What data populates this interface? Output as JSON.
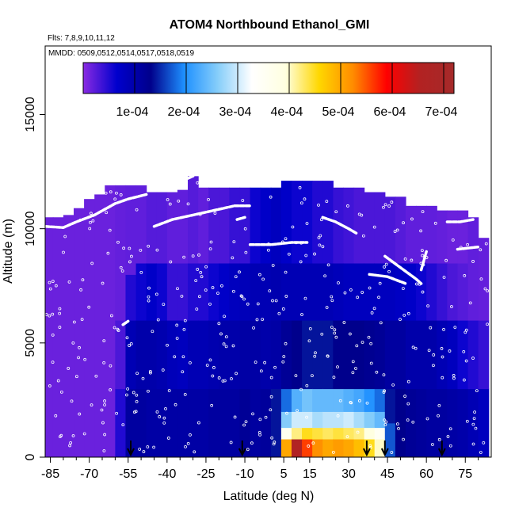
{
  "chart_data": {
    "type": "heatmap",
    "title": "ATOM4 Northbound Ethanol_GMI",
    "flights_label": "Flts: 7,8,9,10,11,12",
    "dates_label": "MMDD: 0509,0512,0514,0517,0518,0519",
    "xlabel": "Latitude (deg N)",
    "ylabel": "Altitude (m)",
    "xlim": [
      -87,
      85
    ],
    "ylim": [
      0,
      18000
    ],
    "x_ticks": [
      -85,
      -70,
      -55,
      -40,
      -25,
      -10,
      5,
      15,
      30,
      45,
      60,
      75
    ],
    "x_minor_ticks": [
      -80,
      -75,
      -65,
      -60,
      -50,
      -45,
      -35,
      -30,
      -20,
      -15,
      -5,
      0,
      10,
      20,
      25,
      35,
      40,
      50,
      55,
      65,
      70,
      80
    ],
    "y_ticks": [
      0,
      5000,
      10000,
      15000
    ],
    "colorbar": {
      "min": 0,
      "max": 0.00072,
      "tick_values": [
        0.0001,
        0.0002,
        0.0003,
        0.0004,
        0.0005,
        0.0006,
        0.0007
      ],
      "tick_labels": [
        "1e-04",
        "2e-04",
        "3e-04",
        "4e-04",
        "5e-04",
        "6e-04",
        "7e-04"
      ],
      "colors": [
        "#8a2be2",
        "#0000cd",
        "#00008b",
        "#1e90ff",
        "#87cefa",
        "#ffffff",
        "#ffffe0",
        "#ffd700",
        "#ff8c00",
        "#ff0000",
        "#b22222",
        "#a52a2a"
      ]
    },
    "colorbar_boundaries": [
      0.0001,
      0.0002,
      0.0003,
      0.0004,
      0.0005,
      0.0006,
      0.0007
    ],
    "profile_arrows_latitude": [
      -54,
      -11,
      37,
      44,
      66
    ],
    "flight_tracks": [
      [
        [
          -87,
          10100
        ],
        [
          -80,
          10050
        ],
        [
          -75,
          10300
        ],
        [
          -68,
          10600
        ],
        [
          -60,
          11100
        ],
        [
          -55,
          11300
        ],
        [
          -48,
          11500
        ]
      ],
      [
        [
          -45,
          10100
        ],
        [
          -38,
          10400
        ],
        [
          -30,
          10600
        ],
        [
          -22,
          10800
        ],
        [
          -14,
          11000
        ],
        [
          -8,
          11000
        ]
      ],
      [
        [
          -13,
          10400
        ],
        [
          -10,
          10500
        ]
      ],
      [
        [
          -8,
          9300
        ],
        [
          0,
          9300
        ],
        [
          8,
          9400
        ],
        [
          14,
          9400
        ]
      ],
      [
        [
          20,
          10500
        ],
        [
          25,
          10300
        ],
        [
          30,
          10000
        ],
        [
          33,
          9800
        ]
      ],
      [
        [
          44,
          8800
        ],
        [
          50,
          8300
        ],
        [
          56,
          7800
        ],
        [
          58,
          7600
        ]
      ],
      [
        [
          38,
          8000
        ],
        [
          45,
          7900
        ],
        [
          52,
          7600
        ]
      ],
      [
        [
          58,
          8200
        ],
        [
          60,
          9000
        ]
      ],
      [
        [
          68,
          10300
        ],
        [
          73,
          10300
        ],
        [
          78,
          10400
        ]
      ],
      [
        [
          72,
          9100
        ],
        [
          80,
          9200
        ]
      ],
      [
        [
          -57,
          5800
        ],
        [
          -55,
          5950
        ]
      ],
      [
        [
          -32,
          12200
        ],
        [
          -30,
          12300
        ]
      ]
    ],
    "columns": [
      {
        "lat": -86,
        "top": 10500,
        "levels": [
          [
            0,
            1.5e-05
          ]
        ]
      },
      {
        "lat": -82,
        "top": 10500,
        "levels": [
          [
            0,
            1.5e-05
          ]
        ]
      },
      {
        "lat": -78,
        "top": 10600,
        "levels": [
          [
            0,
            1.5e-05
          ]
        ]
      },
      {
        "lat": -74,
        "top": 10900,
        "levels": [
          [
            0,
            1.5e-05
          ]
        ]
      },
      {
        "lat": -70,
        "top": 11300,
        "levels": [
          [
            0,
            1.5e-05
          ]
        ]
      },
      {
        "lat": -66,
        "top": 11500,
        "levels": [
          [
            0,
            1.5e-05
          ]
        ]
      },
      {
        "lat": -62,
        "top": 11900,
        "levels": [
          [
            0,
            1.5e-05
          ]
        ]
      },
      {
        "lat": -58,
        "top": 11900,
        "levels": [
          [
            0,
            5e-05
          ],
          [
            3000,
            3e-05
          ],
          [
            6000,
            1.8e-05
          ]
        ]
      },
      {
        "lat": -54,
        "top": 11900,
        "levels": [
          [
            0,
            0.00011
          ],
          [
            3000,
            9e-05
          ],
          [
            6000,
            5e-05
          ],
          [
            8000,
            2e-05
          ]
        ]
      },
      {
        "lat": -50,
        "top": 11900,
        "levels": [
          [
            0,
            0.00011
          ],
          [
            3000,
            0.0001
          ],
          [
            6000,
            6e-05
          ],
          [
            8500,
            2e-05
          ]
        ]
      },
      {
        "lat": -46,
        "top": 11600,
        "levels": [
          [
            0,
            0.000105
          ],
          [
            3000,
            0.0001
          ],
          [
            6000,
            7e-05
          ],
          [
            8500,
            2.5e-05
          ]
        ]
      },
      {
        "lat": -42,
        "top": 11600,
        "levels": [
          [
            0,
            0.000105
          ],
          [
            3000,
            9.5e-05
          ],
          [
            6000,
            6e-05
          ],
          [
            8500,
            2.5e-05
          ]
        ]
      },
      {
        "lat": -38,
        "top": 11600,
        "levels": [
          [
            0,
            0.000105
          ],
          [
            3000,
            8.5e-05
          ],
          [
            6000,
            4e-05
          ],
          [
            8500,
            2e-05
          ]
        ]
      },
      {
        "lat": -34,
        "top": 11700,
        "levels": [
          [
            0,
            0.000105
          ],
          [
            3000,
            8e-05
          ],
          [
            6000,
            4e-05
          ],
          [
            8500,
            2e-05
          ]
        ]
      },
      {
        "lat": -30,
        "top": 12300,
        "levels": [
          [
            0,
            0.000105
          ],
          [
            3000,
            9e-05
          ],
          [
            6000,
            5e-05
          ],
          [
            8500,
            2.5e-05
          ]
        ]
      },
      {
        "lat": -26,
        "top": 11800,
        "levels": [
          [
            0,
            0.000105
          ],
          [
            3000,
            9e-05
          ],
          [
            6000,
            5e-05
          ],
          [
            8500,
            2e-05
          ]
        ]
      },
      {
        "lat": -22,
        "top": 11800,
        "levels": [
          [
            0,
            0.00011
          ],
          [
            3000,
            9.5e-05
          ],
          [
            6000,
            6e-05
          ],
          [
            8500,
            3e-05
          ]
        ]
      },
      {
        "lat": -18,
        "top": 11800,
        "levels": [
          [
            0,
            0.00011
          ],
          [
            3000,
            0.0001
          ],
          [
            6000,
            7e-05
          ],
          [
            8500,
            3e-05
          ]
        ]
      },
      {
        "lat": -14,
        "top": 11800,
        "levels": [
          [
            0,
            0.00011
          ],
          [
            3000,
            0.0001
          ],
          [
            6000,
            8e-05
          ],
          [
            8500,
            4e-05
          ]
        ]
      },
      {
        "lat": -10,
        "top": 11800,
        "levels": [
          [
            0,
            0.00012
          ],
          [
            3000,
            0.000105
          ],
          [
            6000,
            8.5e-05
          ],
          [
            8500,
            4e-05
          ]
        ]
      },
      {
        "lat": -6,
        "top": 11800,
        "levels": [
          [
            0,
            0.00011
          ],
          [
            3000,
            0.000105
          ],
          [
            6000,
            9e-05
          ],
          [
            8500,
            6e-05
          ]
        ]
      },
      {
        "lat": -2,
        "top": 11800,
        "levels": [
          [
            0,
            0.000115
          ],
          [
            3000,
            0.0001
          ],
          [
            6000,
            9e-05
          ],
          [
            8500,
            7e-05
          ]
        ]
      },
      {
        "lat": 2,
        "top": 11800,
        "levels": [
          [
            0,
            0.00014
          ],
          [
            3000,
            0.000105
          ],
          [
            6000,
            9.5e-05
          ],
          [
            8500,
            8e-05
          ]
        ]
      },
      {
        "lat": 6,
        "top": 12100,
        "levels": [
          [
            0,
            0.0005
          ],
          [
            800,
            0.00036
          ],
          [
            1300,
            0.00026
          ],
          [
            2000,
            0.00018
          ],
          [
            3000,
            0.00012
          ],
          [
            6000,
            9e-05
          ],
          [
            8500,
            7e-05
          ]
        ]
      },
      {
        "lat": 10,
        "top": 12100,
        "levels": [
          [
            0,
            0.00066
          ],
          [
            800,
            0.00042
          ],
          [
            1300,
            0.0003
          ],
          [
            2000,
            0.00023
          ],
          [
            3000,
            0.00013
          ],
          [
            6000,
            9e-05
          ],
          [
            8500,
            6e-05
          ]
        ]
      },
      {
        "lat": 14,
        "top": 12100,
        "levels": [
          [
            0,
            0.00056
          ],
          [
            800,
            0.00045
          ],
          [
            1300,
            0.0003
          ],
          [
            2000,
            0.00025
          ],
          [
            3000,
            0.00014
          ],
          [
            6000,
            9e-05
          ],
          [
            8500,
            6e-05
          ]
        ]
      },
      {
        "lat": 18,
        "top": 12100,
        "levels": [
          [
            0,
            0.00052
          ],
          [
            800,
            0.00044
          ],
          [
            1300,
            0.00028
          ],
          [
            2000,
            0.00024
          ],
          [
            3000,
            0.00014
          ],
          [
            6000,
            9e-05
          ],
          [
            8500,
            5e-05
          ]
        ]
      },
      {
        "lat": 22,
        "top": 12100,
        "levels": [
          [
            0,
            0.0005
          ],
          [
            800,
            0.00043
          ],
          [
            1300,
            0.00029
          ],
          [
            2000,
            0.00024
          ],
          [
            3000,
            0.00014
          ],
          [
            6000,
            9e-05
          ],
          [
            8500,
            5e-05
          ]
        ]
      },
      {
        "lat": 26,
        "top": 11800,
        "levels": [
          [
            0,
            0.00051
          ],
          [
            800,
            0.00044
          ],
          [
            1300,
            0.00029
          ],
          [
            2000,
            0.00024
          ],
          [
            3000,
            0.00013
          ],
          [
            6000,
            8.5e-05
          ],
          [
            8500,
            4e-05
          ]
        ]
      },
      {
        "lat": 30,
        "top": 11800,
        "levels": [
          [
            0,
            0.0005
          ],
          [
            800,
            0.00043
          ],
          [
            1300,
            0.0003
          ],
          [
            2000,
            0.00023
          ],
          [
            3000,
            0.00013
          ],
          [
            6000,
            8e-05
          ],
          [
            8500,
            3.5e-05
          ]
        ]
      },
      {
        "lat": 34,
        "top": 11800,
        "levels": [
          [
            0,
            0.00048
          ],
          [
            800,
            0.00042
          ],
          [
            1300,
            0.00028
          ],
          [
            2000,
            0.00022
          ],
          [
            3000,
            0.00013
          ],
          [
            6000,
            8e-05
          ],
          [
            8500,
            3e-05
          ]
        ]
      },
      {
        "lat": 38,
        "top": 11600,
        "levels": [
          [
            0,
            0.00045
          ],
          [
            800,
            0.00039
          ],
          [
            1300,
            0.00026
          ],
          [
            2000,
            0.0002
          ],
          [
            3000,
            0.000125
          ],
          [
            6000,
            8e-05
          ],
          [
            8500,
            3e-05
          ]
        ]
      },
      {
        "lat": 42,
        "top": 11600,
        "levels": [
          [
            0,
            0.0004
          ],
          [
            800,
            0.00035
          ],
          [
            1300,
            0.00024
          ],
          [
            2000,
            0.00018
          ],
          [
            3000,
            0.00012
          ],
          [
            6000,
            8e-05
          ],
          [
            8500,
            3e-05
          ]
        ]
      },
      {
        "lat": 46,
        "top": 11400,
        "levels": [
          [
            0,
            0.00017
          ],
          [
            1500,
            0.00014
          ],
          [
            3000,
            0.00011
          ],
          [
            6000,
            8e-05
          ],
          [
            8500,
            3e-05
          ]
        ]
      },
      {
        "lat": 50,
        "top": 11400,
        "levels": [
          [
            0,
            0.00013
          ],
          [
            3000,
            0.00011
          ],
          [
            6000,
            7.5e-05
          ],
          [
            8500,
            2.5e-05
          ]
        ]
      },
      {
        "lat": 54,
        "top": 11000,
        "levels": [
          [
            0,
            0.00012
          ],
          [
            3000,
            0.0001
          ],
          [
            6000,
            7e-05
          ],
          [
            8500,
            2e-05
          ]
        ]
      },
      {
        "lat": 58,
        "top": 11000,
        "levels": [
          [
            0,
            0.000115
          ],
          [
            3000,
            0.0001
          ],
          [
            6000,
            6e-05
          ],
          [
            8500,
            2e-05
          ]
        ]
      },
      {
        "lat": 62,
        "top": 11000,
        "levels": [
          [
            0,
            0.00011
          ],
          [
            3000,
            0.0001
          ],
          [
            6000,
            5e-05
          ],
          [
            8500,
            2e-05
          ]
        ]
      },
      {
        "lat": 66,
        "top": 10800,
        "levels": [
          [
            0,
            0.00011
          ],
          [
            3000,
            9e-05
          ],
          [
            6000,
            4e-05
          ],
          [
            8500,
            1.8e-05
          ]
        ]
      },
      {
        "lat": 70,
        "top": 10800,
        "levels": [
          [
            0,
            0.000105
          ],
          [
            3000,
            8e-05
          ],
          [
            6000,
            3e-05
          ],
          [
            8500,
            1.5e-05
          ]
        ]
      },
      {
        "lat": 74,
        "top": 10800,
        "levels": [
          [
            0,
            0.0001
          ],
          [
            3000,
            6e-05
          ],
          [
            6000,
            2.5e-05
          ],
          [
            8500,
            1.5e-05
          ]
        ]
      },
      {
        "lat": 78,
        "top": 10500,
        "levels": [
          [
            0,
            9e-05
          ],
          [
            3000,
            5e-05
          ],
          [
            6000,
            2e-05
          ]
        ]
      },
      {
        "lat": 82,
        "top": 9600,
        "levels": [
          [
            0,
            8e-05
          ],
          [
            3000,
            4e-05
          ],
          [
            6000,
            1.8e-05
          ]
        ]
      }
    ]
  }
}
